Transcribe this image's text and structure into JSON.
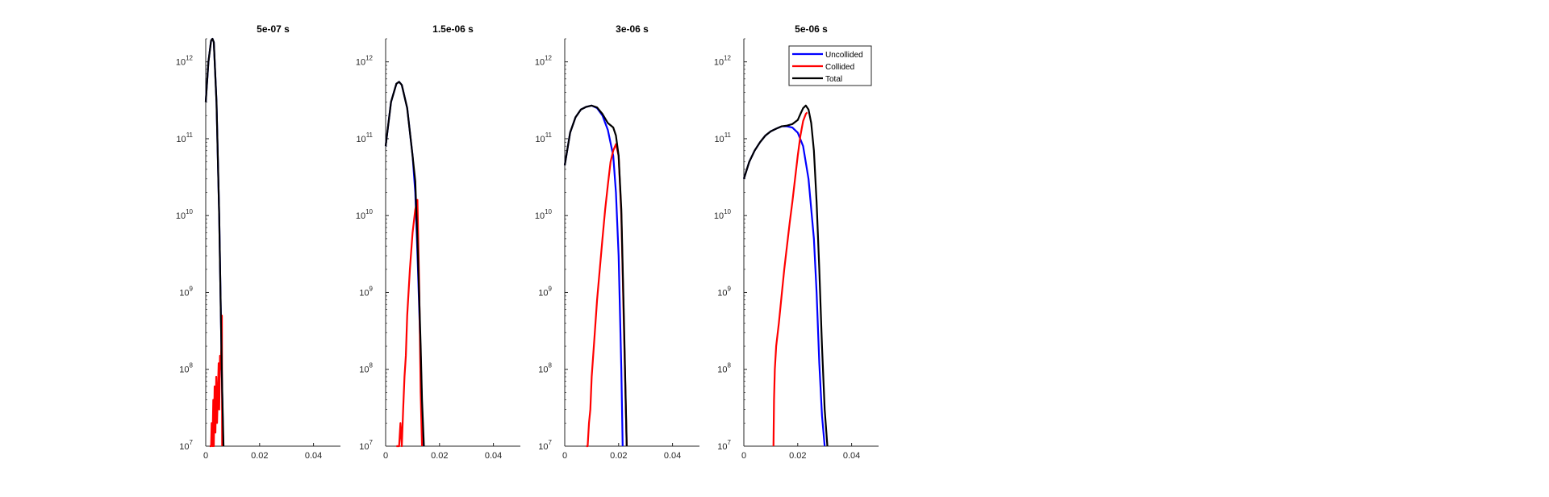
{
  "figure": {
    "background": "#ffffff"
  },
  "chart_data": [
    {
      "type": "line",
      "title": "5e-07 s",
      "xlim": [
        0,
        0.05
      ],
      "ylim": [
        10000000.0,
        2000000000000.0
      ],
      "yscale": "log",
      "xticks": [
        "0",
        "0.02",
        "0.04"
      ],
      "yticks": [
        {
          "base": "10",
          "exp": "7"
        },
        {
          "base": "10",
          "exp": "8"
        },
        {
          "base": "10",
          "exp": "9"
        },
        {
          "base": "10",
          "exp": "10"
        },
        {
          "base": "10",
          "exp": "11"
        },
        {
          "base": "10",
          "exp": "12"
        }
      ],
      "legend": null,
      "series": [
        {
          "name": "Uncollided",
          "color": "#0000ff",
          "x": [
            0,
            0.001,
            0.002,
            0.0025,
            0.003,
            0.004,
            0.005,
            0.006,
            0.0065
          ],
          "y": [
            300000000000.0,
            1000000000000.0,
            1900000000000.0,
            2000000000000.0,
            1800000000000.0,
            300000000000.0,
            10000000000.0,
            80000000.0,
            10000000.0
          ]
        },
        {
          "name": "Collided",
          "color": "#ff0000",
          "x": [
            0.0015,
            0.002,
            0.0022,
            0.0025,
            0.0028,
            0.003,
            0.0033,
            0.0036,
            0.0039,
            0.0042,
            0.0045,
            0.0048,
            0.005,
            0.0053,
            0.0055,
            0.0058,
            0.006,
            0.0061
          ],
          "y": [
            10000000.0,
            10000000.0,
            20000000.0,
            10000000.0,
            40000000.0,
            10000000.0,
            60000000.0,
            15000000.0,
            80000000.0,
            20000000.0,
            50000000.0,
            120000000.0,
            30000000.0,
            150000000.0,
            100000000.0,
            200000000.0,
            500000000.0,
            10000000.0
          ]
        },
        {
          "name": "Total",
          "color": "#000000",
          "x": [
            0,
            0.001,
            0.002,
            0.0025,
            0.003,
            0.004,
            0.005,
            0.006,
            0.0066
          ],
          "y": [
            300000000000.0,
            1000000000000.0,
            1900000000000.0,
            2000000000000.0,
            1800000000000.0,
            300000000000.0,
            10000000000.0,
            80000000.0,
            10000000.0
          ]
        }
      ]
    },
    {
      "type": "line",
      "title": "1.5e-06 s",
      "xlim": [
        0,
        0.05
      ],
      "ylim": [
        10000000.0,
        2000000000000.0
      ],
      "yscale": "log",
      "xticks": [
        "0",
        "0.02",
        "0.04"
      ],
      "yticks": [
        {
          "base": "10",
          "exp": "7"
        },
        {
          "base": "10",
          "exp": "8"
        },
        {
          "base": "10",
          "exp": "9"
        },
        {
          "base": "10",
          "exp": "10"
        },
        {
          "base": "10",
          "exp": "11"
        },
        {
          "base": "10",
          "exp": "12"
        }
      ],
      "legend": null,
      "series": [
        {
          "name": "Uncollided",
          "color": "#0000ff",
          "x": [
            0,
            0.002,
            0.004,
            0.005,
            0.006,
            0.008,
            0.01,
            0.011,
            0.012,
            0.013,
            0.0135,
            0.014
          ],
          "y": [
            80000000000.0,
            300000000000.0,
            520000000000.0,
            550000000000.0,
            500000000000.0,
            250000000000.0,
            60000000000.0,
            20000000000.0,
            2000000000.0,
            150000000.0,
            30000000.0,
            10000000.0
          ]
        },
        {
          "name": "Collided",
          "color": "#ff0000",
          "x": [
            0.004,
            0.005,
            0.0055,
            0.006,
            0.0065,
            0.007,
            0.0075,
            0.008,
            0.009,
            0.01,
            0.011,
            0.0118,
            0.0125,
            0.013,
            0.0135
          ],
          "y": [
            10000000.0,
            10000000.0,
            20000000.0,
            10000000.0,
            30000000.0,
            80000000.0,
            150000000.0,
            500000000.0,
            2000000000.0,
            6000000000.0,
            12000000000.0,
            16000000000.0,
            1000000000.0,
            50000000.0,
            10000000.0
          ]
        },
        {
          "name": "Total",
          "color": "#000000",
          "x": [
            0,
            0.002,
            0.004,
            0.005,
            0.006,
            0.008,
            0.01,
            0.011,
            0.012,
            0.013,
            0.0135,
            0.0142
          ],
          "y": [
            80000000000.0,
            300000000000.0,
            520000000000.0,
            550000000000.0,
            500000000000.0,
            250000000000.0,
            60000000000.0,
            28000000000.0,
            3000000000.0,
            200000000.0,
            40000000.0,
            10000000.0
          ]
        }
      ]
    },
    {
      "type": "line",
      "title": "3e-06 s",
      "xlim": [
        0,
        0.05
      ],
      "ylim": [
        10000000.0,
        2000000000000.0
      ],
      "yscale": "log",
      "xticks": [
        "0",
        "0.02",
        "0.04"
      ],
      "yticks": [
        {
          "base": "10",
          "exp": "7"
        },
        {
          "base": "10",
          "exp": "8"
        },
        {
          "base": "10",
          "exp": "9"
        },
        {
          "base": "10",
          "exp": "10"
        },
        {
          "base": "10",
          "exp": "11"
        },
        {
          "base": "10",
          "exp": "12"
        }
      ],
      "legend": null,
      "series": [
        {
          "name": "Uncollided",
          "color": "#0000ff",
          "x": [
            0,
            0.002,
            0.004,
            0.006,
            0.008,
            0.01,
            0.012,
            0.014,
            0.016,
            0.018,
            0.019,
            0.02,
            0.021,
            0.0215
          ],
          "y": [
            45000000000.0,
            120000000000.0,
            190000000000.0,
            240000000000.0,
            260000000000.0,
            270000000000.0,
            250000000000.0,
            200000000000.0,
            130000000000.0,
            60000000000.0,
            20000000000.0,
            3000000000.0,
            100000000.0,
            10000000.0
          ]
        },
        {
          "name": "Collided",
          "color": "#ff0000",
          "x": [
            0.008,
            0.0085,
            0.009,
            0.0095,
            0.01,
            0.011,
            0.012,
            0.013,
            0.014,
            0.015,
            0.016,
            0.017,
            0.018,
            0.019,
            0.02,
            0.021,
            0.022,
            0.023
          ],
          "y": [
            10000000.0,
            10000000.0,
            20000000.0,
            30000000.0,
            80000000.0,
            250000000.0,
            800000000.0,
            2000000000.0,
            5000000000.0,
            12000000000.0,
            25000000000.0,
            50000000000.0,
            70000000000.0,
            85000000000.0,
            60000000000.0,
            10000000000.0,
            300000000.0,
            10000000.0
          ]
        },
        {
          "name": "Total",
          "color": "#000000",
          "x": [
            0,
            0.002,
            0.004,
            0.006,
            0.008,
            0.01,
            0.012,
            0.014,
            0.016,
            0.018,
            0.019,
            0.02,
            0.021,
            0.022,
            0.023
          ],
          "y": [
            45000000000.0,
            120000000000.0,
            190000000000.0,
            240000000000.0,
            260000000000.0,
            270000000000.0,
            255000000000.0,
            210000000000.0,
            160000000000.0,
            140000000000.0,
            110000000000.0,
            60000000000.0,
            12000000000.0,
            400000000.0,
            10000000.0
          ]
        }
      ]
    },
    {
      "type": "line",
      "title": "5e-06 s",
      "xlim": [
        0,
        0.05
      ],
      "ylim": [
        10000000.0,
        2000000000000.0
      ],
      "yscale": "log",
      "xticks": [
        "0",
        "0.02",
        "0.04"
      ],
      "yticks": [
        {
          "base": "10",
          "exp": "7"
        },
        {
          "base": "10",
          "exp": "8"
        },
        {
          "base": "10",
          "exp": "9"
        },
        {
          "base": "10",
          "exp": "10"
        },
        {
          "base": "10",
          "exp": "11"
        },
        {
          "base": "10",
          "exp": "12"
        }
      ],
      "legend": {
        "position": "top-right",
        "entries": [
          "Uncollided",
          "Collided",
          "Total"
        ]
      },
      "series": [
        {
          "name": "Uncollided",
          "color": "#0000ff",
          "x": [
            0,
            0.002,
            0.004,
            0.006,
            0.008,
            0.01,
            0.012,
            0.014,
            0.016,
            0.018,
            0.02,
            0.022,
            0.024,
            0.026,
            0.027,
            0.028,
            0.029,
            0.03
          ],
          "y": [
            30000000000.0,
            50000000000.0,
            70000000000.0,
            90000000000.0,
            110000000000.0,
            125000000000.0,
            135000000000.0,
            145000000000.0,
            145000000000.0,
            140000000000.0,
            120000000000.0,
            80000000000.0,
            30000000000.0,
            5000000000.0,
            1000000000.0,
            120000000.0,
            25000000.0,
            10000000.0
          ]
        },
        {
          "name": "Collided",
          "color": "#ff0000",
          "x": [
            0.011,
            0.0112,
            0.0115,
            0.012,
            0.013,
            0.014,
            0.015,
            0.016,
            0.017,
            0.018,
            0.019,
            0.02,
            0.021,
            0.022,
            0.023,
            0.0235
          ],
          "y": [
            10000000.0,
            40000000.0,
            100000000.0,
            200000000.0,
            400000000.0,
            900000000.0,
            2000000000.0,
            4000000000.0,
            8000000000.0,
            15000000000.0,
            30000000000.0,
            60000000000.0,
            110000000000.0,
            170000000000.0,
            210000000000.0,
            220000000000.0
          ]
        },
        {
          "name": "Total",
          "color": "#000000",
          "x": [
            0,
            0.002,
            0.004,
            0.006,
            0.008,
            0.01,
            0.012,
            0.014,
            0.016,
            0.018,
            0.02,
            0.021,
            0.022,
            0.023,
            0.024,
            0.025,
            0.026,
            0.027,
            0.028,
            0.029,
            0.03,
            0.031
          ],
          "y": [
            30000000000.0,
            50000000000.0,
            70000000000.0,
            90000000000.0,
            110000000000.0,
            125000000000.0,
            135000000000.0,
            145000000000.0,
            148000000000.0,
            155000000000.0,
            175000000000.0,
            210000000000.0,
            250000000000.0,
            270000000000.0,
            240000000000.0,
            160000000000.0,
            70000000000.0,
            15000000000.0,
            2000000000.0,
            200000000.0,
            30000000.0,
            10000000.0
          ]
        }
      ]
    }
  ]
}
